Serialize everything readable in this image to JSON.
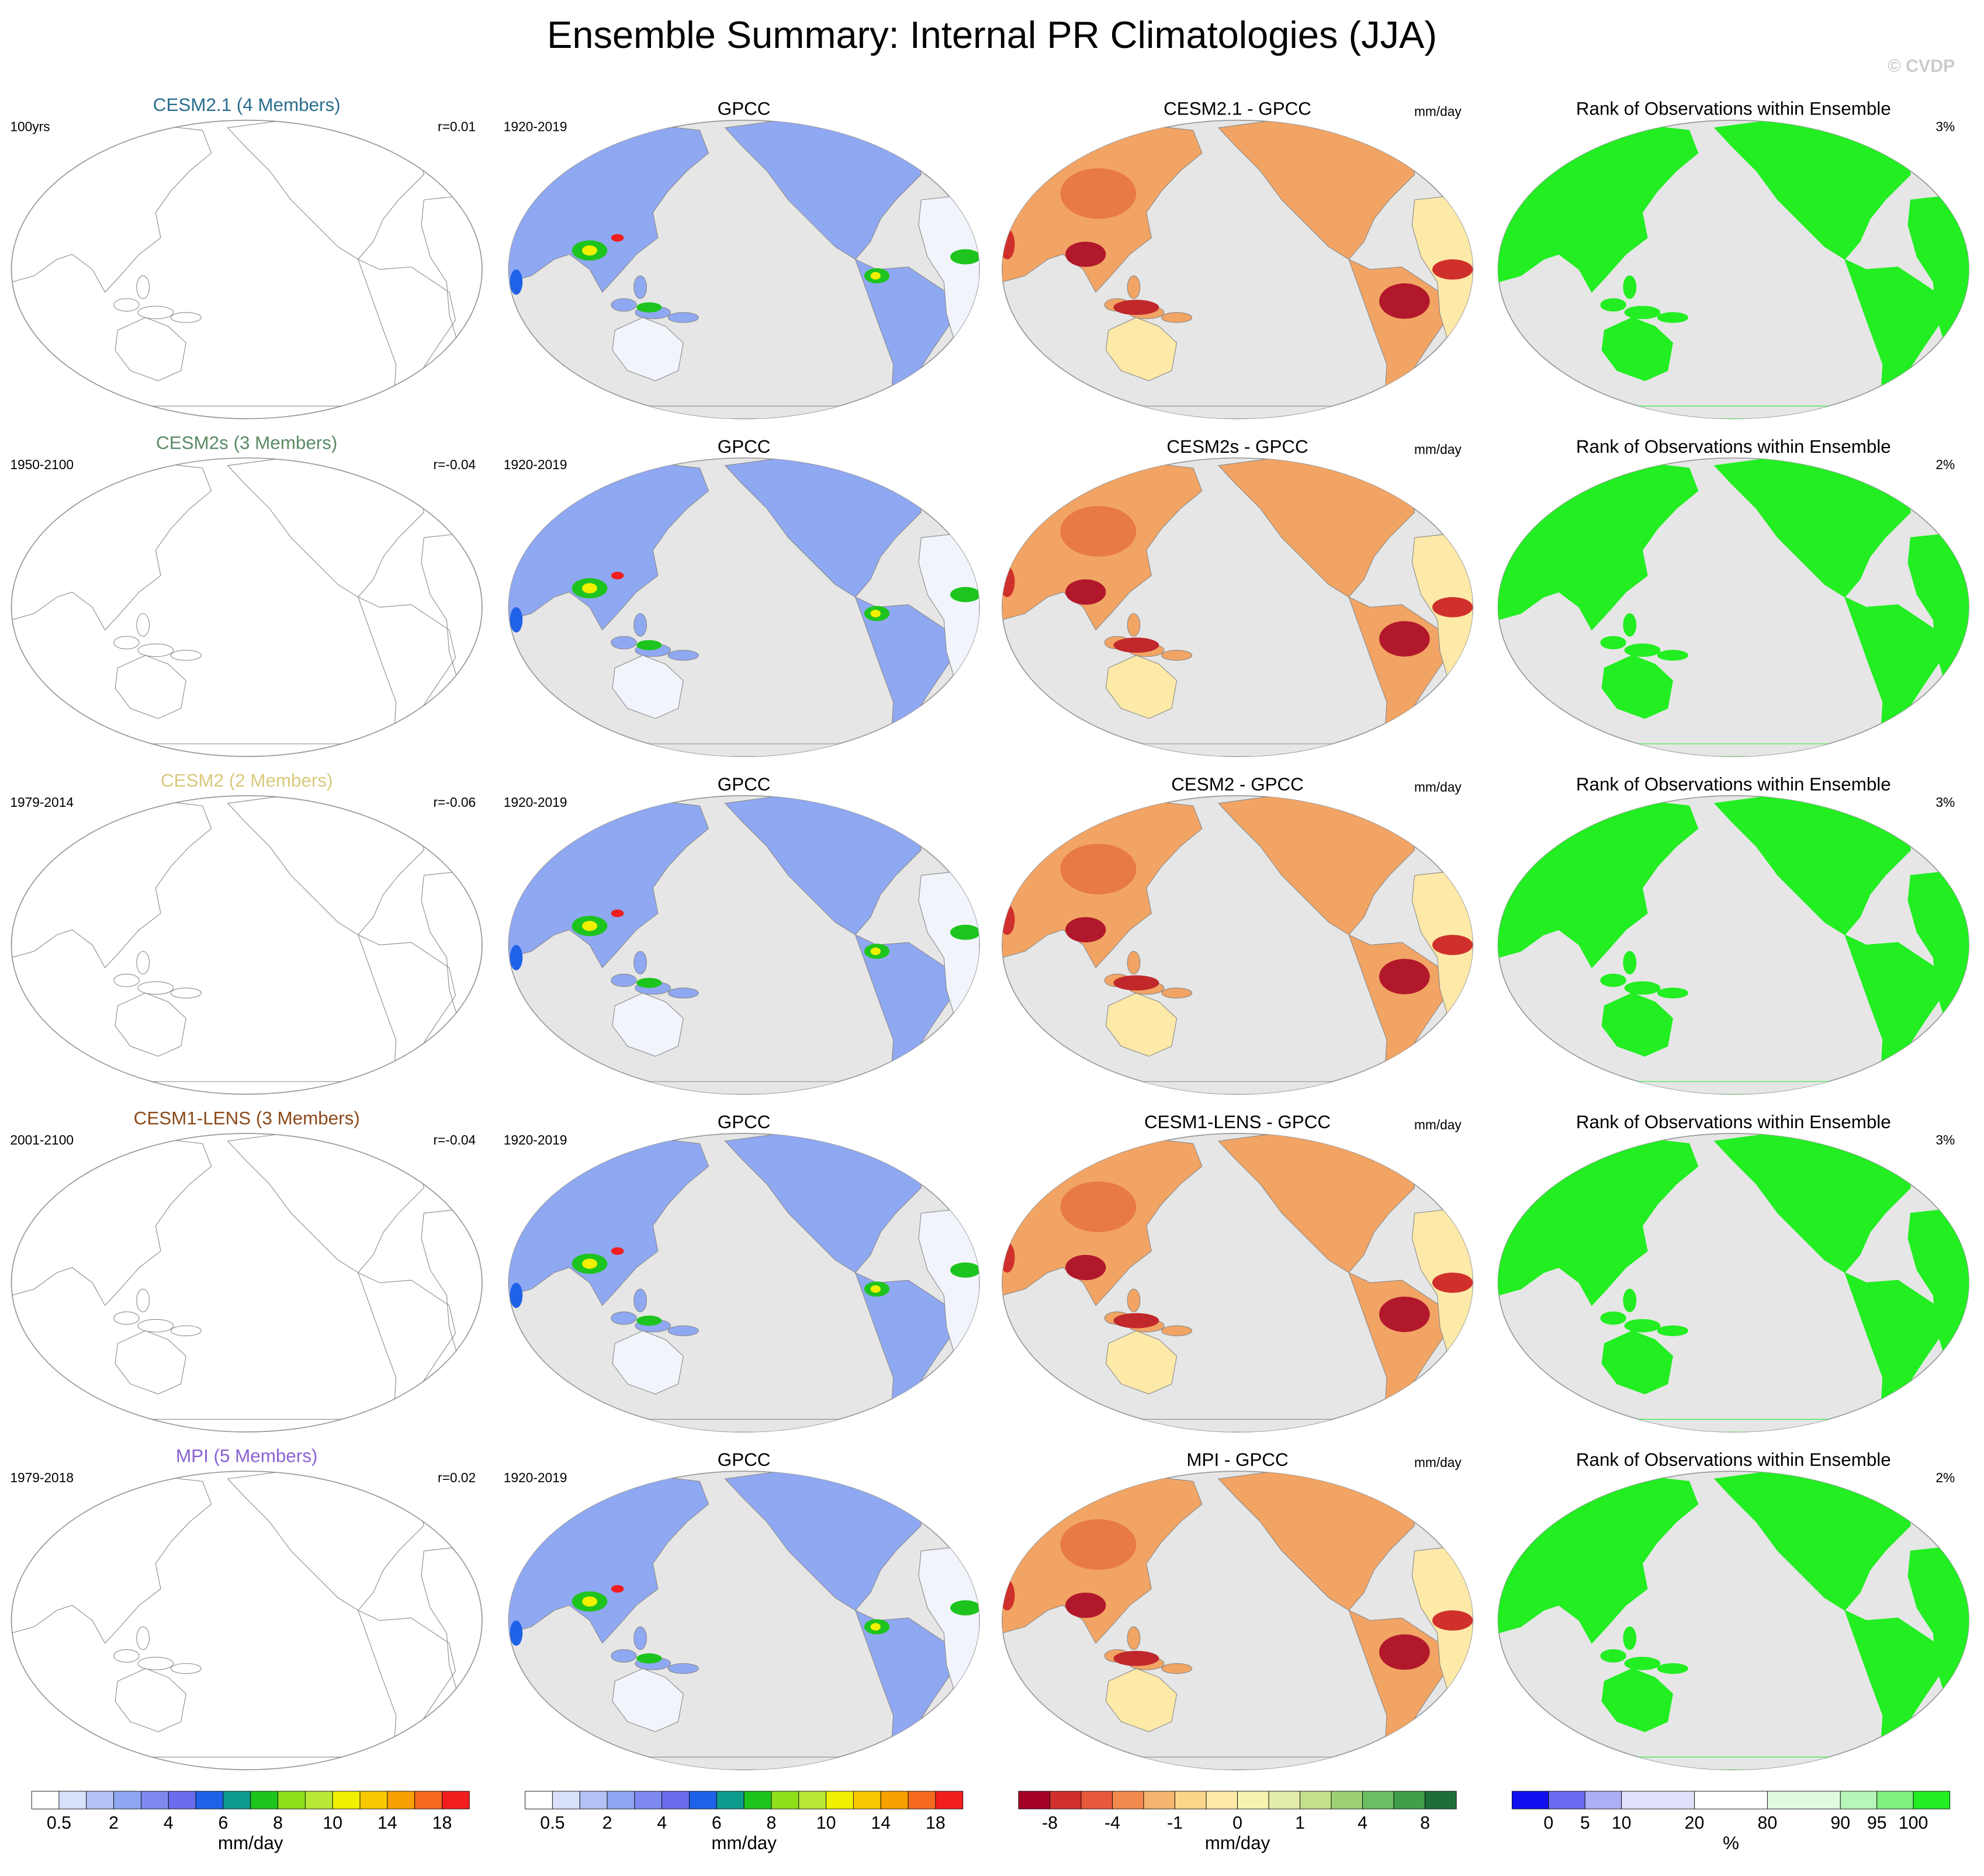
{
  "title": "Ensemble Summary: Internal PR Climatologies (JJA)",
  "watermark": "© CVDP",
  "rows": [
    {
      "model": "CESM2.1 (4 Members)",
      "model_color": "#2a6e8e",
      "period": "100yrs",
      "r": "r=0.01",
      "obs_title": "GPCC",
      "obs_period": "1920-2019",
      "diff_title": "CESM2.1 - GPCC",
      "diff_unit": "mm/day",
      "rank_title": "Rank of Observations within Ensemble",
      "rank_pct": "3%"
    },
    {
      "model": "CESM2s (3 Members)",
      "model_color": "#5a8a66",
      "period": "1950-2100",
      "r": "r=-0.04",
      "obs_title": "GPCC",
      "obs_period": "1920-2019",
      "diff_title": "CESM2s - GPCC",
      "diff_unit": "mm/day",
      "rank_title": "Rank of Observations within Ensemble",
      "rank_pct": "2%"
    },
    {
      "model": "CESM2 (2 Members)",
      "model_color": "#d9c97c",
      "period": "1979-2014",
      "r": "r=-0.06",
      "obs_title": "GPCC",
      "obs_period": "1920-2019",
      "diff_title": "CESM2 - GPCC",
      "diff_unit": "mm/day",
      "rank_title": "Rank of Observations within Ensemble",
      "rank_pct": "3%"
    },
    {
      "model": "CESM1-LENS (3 Members)",
      "model_color": "#8b4a1a",
      "period": "2001-2100",
      "r": "r=-0.04",
      "obs_title": "GPCC",
      "obs_period": "1920-2019",
      "diff_title": "CESM1-LENS - GPCC",
      "diff_unit": "mm/day",
      "rank_title": "Rank of Observations within Ensemble",
      "rank_pct": "3%"
    },
    {
      "model": "MPI (5 Members)",
      "model_color": "#8a62d2",
      "period": "1979-2018",
      "r": "r=0.02",
      "obs_title": "GPCC",
      "obs_period": "1920-2019",
      "diff_title": "MPI - GPCC",
      "diff_unit": "mm/day",
      "rank_title": "Rank of Observations within Ensemble",
      "rank_pct": "2%"
    }
  ],
  "colorbars": [
    {
      "labels": [
        "0.5",
        "2",
        "4",
        "6",
        "8",
        "10",
        "14",
        "18"
      ],
      "unit": "mm/day",
      "colors": [
        "#ffffff",
        "#d9e0fa",
        "#b3c2f5",
        "#8fa6f2",
        "#7d89ef",
        "#6a6cee",
        "#1f62e8",
        "#0e9a8c",
        "#1ec41e",
        "#8ee01a",
        "#b8e838",
        "#f0f000",
        "#f8c800",
        "#f8a000",
        "#f46a1e",
        "#f01e1e"
      ]
    },
    {
      "labels": [
        "0.5",
        "2",
        "4",
        "6",
        "8",
        "10",
        "14",
        "18"
      ],
      "unit": "mm/day",
      "colors": [
        "#ffffff",
        "#d9e0fa",
        "#b3c2f5",
        "#8fa6f2",
        "#7d89ef",
        "#6a6cee",
        "#1f62e8",
        "#0e9a8c",
        "#1ec41e",
        "#8ee01a",
        "#b8e838",
        "#f0f000",
        "#f8c800",
        "#f8a000",
        "#f46a1e",
        "#f01e1e"
      ]
    },
    {
      "labels": [
        "-8",
        "-4",
        "-1",
        "0",
        "1",
        "4",
        "8"
      ],
      "unit": "mm/day",
      "colors": [
        "#a50026",
        "#d0302b",
        "#e8583a",
        "#f28a50",
        "#f7b470",
        "#fbd58a",
        "#fdeaa8",
        "#f5f3b0",
        "#e3ecaa",
        "#c4e08a",
        "#9cd075",
        "#6dbd63",
        "#3f9e4a",
        "#1f6e37"
      ]
    },
    {
      "labels": [
        "0",
        "5",
        "10",
        "20",
        "80",
        "90",
        "95",
        "100"
      ],
      "unit": "%",
      "colors": [
        "#1010f0",
        "#6a6af0",
        "#aeaef5",
        "#e0e0fa",
        "#ffffff",
        "#e0fae0",
        "#b8f5b8",
        "#80f080",
        "#22ee22"
      ]
    }
  ]
}
